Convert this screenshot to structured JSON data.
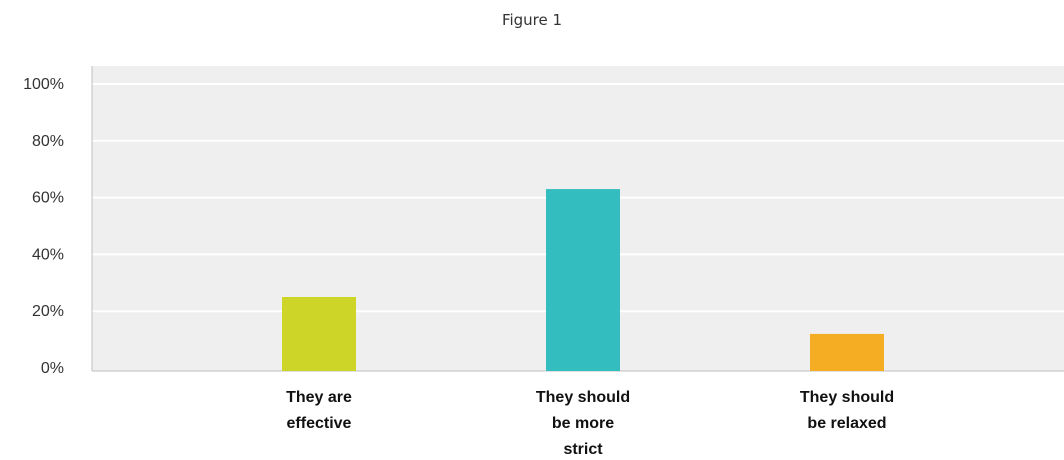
{
  "chart_data": {
    "type": "bar",
    "title": "Figure 1",
    "categories": [
      [
        "They are",
        "effective"
      ],
      [
        "They should",
        "be more",
        "strict"
      ],
      [
        "They should",
        "be relaxed"
      ]
    ],
    "values": [
      25,
      63,
      12
    ],
    "colors": [
      "#cdd529",
      "#34bdbf",
      "#f5ae24"
    ],
    "yticks": [
      "0%",
      "20%",
      "40%",
      "60%",
      "80%",
      "100%"
    ],
    "ylim": [
      0,
      100
    ],
    "grid": true,
    "plot_background": "#efefef",
    "xlabel": "",
    "ylabel": ""
  }
}
